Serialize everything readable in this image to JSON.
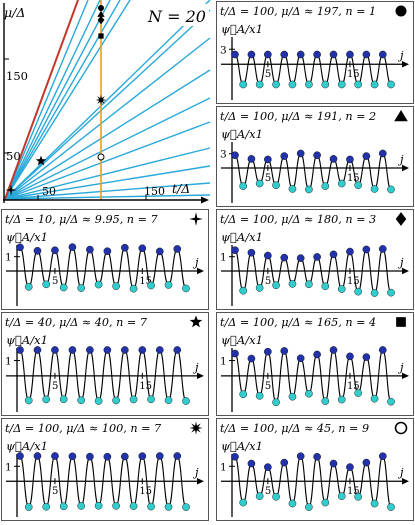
{
  "colors": {
    "line_blue": "#29a9d9",
    "line_red": "#c0392b",
    "line_orange": "#f39c12",
    "panel_border": "#555555",
    "dot_blue": "#2233aa",
    "dot_cyan": "#33cccc",
    "curve": "#000000"
  },
  "main_chart": {
    "ylabel": "μ/Δ",
    "xlabel": "t/Δ",
    "annotation": "N = 20",
    "ytick_labels": [
      "50",
      "150"
    ],
    "xtick_labels": [
      "50",
      "150"
    ]
  },
  "panels": [
    {
      "id": "p1",
      "title": "t/Δ = 100, μ/Δ ≈ 197, n = 1",
      "marker": "circle-filled",
      "ylabel": "ψ⃗A/x1",
      "ytick": "3",
      "xticks": [
        "5",
        "15"
      ],
      "xlabel": "j"
    },
    {
      "id": "p2",
      "title": "t/Δ = 100, μ/Δ ≈ 191, n = 2",
      "marker": "triangle",
      "ylabel": "ψ⃗A/x1",
      "ytick": "3",
      "xticks": [
        "5",
        "15"
      ],
      "xlabel": "j"
    },
    {
      "id": "p3",
      "title": "t/Δ = 10, μ/Δ ≈ 9.95, n = 7",
      "marker": "star4",
      "ylabel": "ψ⃗A/x1",
      "ytick": "1",
      "xticks": [
        "5",
        "15"
      ],
      "xlabel": "j"
    },
    {
      "id": "p4",
      "title": "t/Δ = 100, μ/Δ ≈ 180, n = 3",
      "marker": "diamond",
      "ylabel": "ψ⃗A/x1",
      "ytick": "1",
      "xticks": [
        "5",
        "15"
      ],
      "xlabel": "j"
    },
    {
      "id": "p5",
      "title": "t/Δ = 40, μ/Δ ≈ 40, n = 7",
      "marker": "star5",
      "ylabel": "ψ⃗A/x1",
      "ytick": "1",
      "xticks": [
        "5",
        "15"
      ],
      "xlabel": "j"
    },
    {
      "id": "p6",
      "title": "t/Δ = 100, μ/Δ ≈ 165, n = 4",
      "marker": "square",
      "ylabel": "ψ⃗A/x1",
      "ytick": "1",
      "xticks": [
        "5",
        "15"
      ],
      "xlabel": "j"
    },
    {
      "id": "p7",
      "title": "t/Δ = 100, μ/Δ ≈ 100, n = 7",
      "marker": "starburst",
      "ylabel": "ψ⃗A/x1",
      "ytick": "1",
      "xticks": [
        "5",
        "15"
      ],
      "xlabel": "j"
    },
    {
      "id": "p8",
      "title": "t/Δ = 100, μ/Δ ≈ 45, n = 9",
      "marker": "circle-open",
      "ylabel": "ψ⃗A/x1",
      "ytick": "1",
      "xticks": [
        "5",
        "15"
      ],
      "xlabel": "j"
    }
  ]
}
